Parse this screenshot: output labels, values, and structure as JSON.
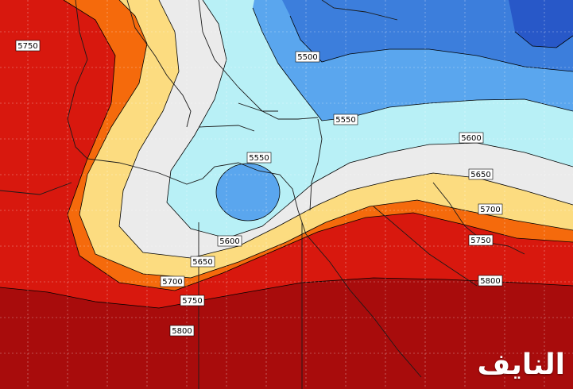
{
  "map": {
    "contour_labels": {
      "l5750_nw": "5750",
      "l5500": "5500",
      "l5550_top": "5550",
      "l5550_center": "5550",
      "l5600_right": "5600",
      "l5600_center": "5600",
      "l5650_right": "5650",
      "l5650_center": "5650",
      "l5700_right": "5700",
      "l5700_center": "5700",
      "l5750_right": "5750",
      "l5750_center": "5750",
      "l5800_right": "5800",
      "l5800_center": "5800"
    },
    "colors": {
      "h5850": "#a80c0c",
      "h5800": "#d8180e",
      "h5750": "#f56a0c",
      "h5700": "#fcdc80",
      "h5650": "#ebebeb",
      "h5600": "#b8f0f6",
      "h5550": "#5aa6ee",
      "h5500": "#3c7edc",
      "h5450": "#2858c8"
    }
  },
  "watermark": "النايف"
}
